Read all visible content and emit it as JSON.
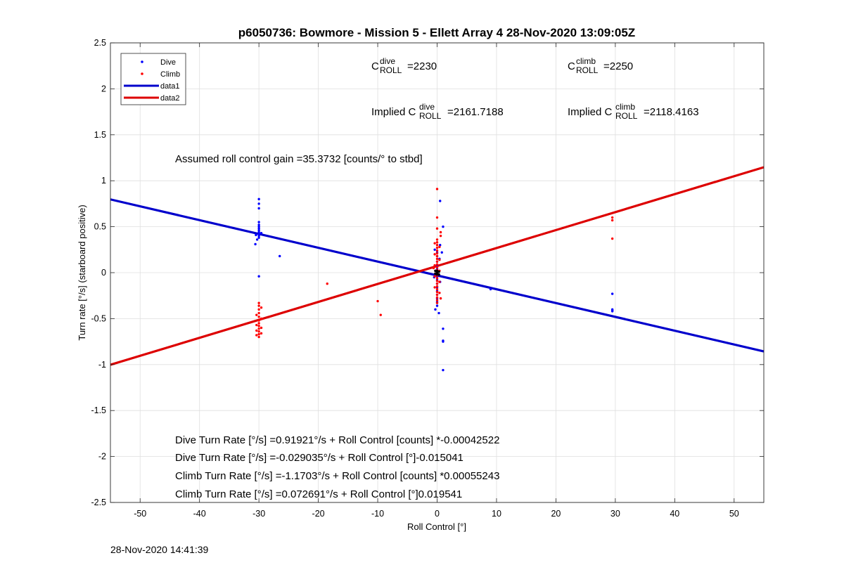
{
  "chart_data": {
    "type": "scatter",
    "title": "p6050736: Bowmore - Mission 5 - Ellett Array 4 28-Nov-2020 13:09:05Z",
    "xlabel": "Roll Control [°]",
    "ylabel": "Turn rate [°/s] (starboard positive)",
    "xlim": [
      -55,
      55
    ],
    "ylim": [
      -2.5,
      2.5
    ],
    "xticks": [
      -50,
      -40,
      -30,
      -20,
      -10,
      0,
      10,
      20,
      30,
      40,
      50
    ],
    "yticks": [
      -2.5,
      -2,
      -1.5,
      -1,
      -0.5,
      0,
      0.5,
      1,
      1.5,
      2,
      2.5
    ],
    "grid": true,
    "legend_location": "top-left",
    "series": [
      {
        "name": "Dive",
        "kind": "points",
        "color": "#0000ff",
        "points": [
          [
            -30,
            0.8
          ],
          [
            -30,
            0.75
          ],
          [
            -30,
            0.7
          ],
          [
            -30,
            0.55
          ],
          [
            -30,
            0.52
          ],
          [
            -30,
            0.5
          ],
          [
            -30,
            0.48
          ],
          [
            -30,
            0.46
          ],
          [
            -30,
            0.44
          ],
          [
            -30,
            0.42
          ],
          [
            -30,
            0.4
          ],
          [
            -30,
            0.38
          ],
          [
            -30.5,
            0.41
          ],
          [
            -29.6,
            0.43
          ],
          [
            -30.3,
            0.36
          ],
          [
            -30.6,
            0.31
          ],
          [
            -30,
            -0.04
          ],
          [
            -26.5,
            0.18
          ],
          [
            0,
            0.22
          ],
          [
            0,
            0.18
          ],
          [
            0,
            0.12
          ],
          [
            0,
            0.08
          ],
          [
            0,
            0.04
          ],
          [
            0,
            0.0
          ],
          [
            0,
            -0.04
          ],
          [
            0,
            -0.08
          ],
          [
            0,
            -0.12
          ],
          [
            0,
            -0.16
          ],
          [
            0,
            -0.2
          ],
          [
            0,
            -0.24
          ],
          [
            0,
            -0.28
          ],
          [
            0,
            -0.32
          ],
          [
            0,
            -0.36
          ],
          [
            -0.3,
            -0.4
          ],
          [
            0.3,
            -0.44
          ],
          [
            -0.4,
            0.25
          ],
          [
            0.4,
            0.15
          ],
          [
            0.5,
            -0.1
          ],
          [
            -0.5,
            -0.05
          ],
          [
            0.5,
            0.78
          ],
          [
            1.0,
            0.5
          ],
          [
            0.5,
            0.3
          ],
          [
            0.8,
            0.22
          ],
          [
            1.0,
            -0.61
          ],
          [
            1.0,
            -0.74
          ],
          [
            1.0,
            -0.75
          ],
          [
            1.0,
            -1.06
          ],
          [
            9,
            -0.18
          ],
          [
            29.5,
            -0.23
          ],
          [
            29.5,
            -0.4
          ],
          [
            29.5,
            -0.41
          ],
          [
            29.5,
            -0.42
          ]
        ]
      },
      {
        "name": "Climb",
        "kind": "points",
        "color": "#ff0000",
        "points": [
          [
            -30,
            -0.33
          ],
          [
            -30,
            -0.36
          ],
          [
            -30,
            -0.4
          ],
          [
            -30,
            -0.44
          ],
          [
            -30,
            -0.48
          ],
          [
            -30,
            -0.52
          ],
          [
            -30,
            -0.55
          ],
          [
            -30,
            -0.58
          ],
          [
            -30,
            -0.61
          ],
          [
            -30,
            -0.64
          ],
          [
            -30,
            -0.67
          ],
          [
            -30,
            -0.7
          ],
          [
            -29.6,
            -0.38
          ],
          [
            -30.4,
            -0.46
          ],
          [
            -29.6,
            -0.5
          ],
          [
            -30.4,
            -0.57
          ],
          [
            -29.6,
            -0.6
          ],
          [
            -30.4,
            -0.63
          ],
          [
            -29.6,
            -0.66
          ],
          [
            -30.4,
            -0.68
          ],
          [
            -18.5,
            -0.12
          ],
          [
            -10,
            -0.31
          ],
          [
            -9.5,
            -0.46
          ],
          [
            0,
            0.91
          ],
          [
            0,
            0.6
          ],
          [
            0,
            0.48
          ],
          [
            0,
            0.36
          ],
          [
            0,
            0.33
          ],
          [
            0,
            0.3
          ],
          [
            0,
            0.27
          ],
          [
            0,
            0.24
          ],
          [
            0,
            0.21
          ],
          [
            0,
            0.18
          ],
          [
            0,
            0.15
          ],
          [
            0,
            0.12
          ],
          [
            0,
            0.09
          ],
          [
            0,
            0.06
          ],
          [
            0,
            0.03
          ],
          [
            0,
            0.0
          ],
          [
            0,
            -0.03
          ],
          [
            0,
            -0.06
          ],
          [
            0,
            -0.09
          ],
          [
            0,
            -0.12
          ],
          [
            0,
            -0.15
          ],
          [
            0,
            -0.18
          ],
          [
            0,
            -0.21
          ],
          [
            0,
            -0.24
          ],
          [
            0,
            -0.27
          ],
          [
            0,
            -0.3
          ],
          [
            0,
            -0.33
          ],
          [
            -0.4,
            0.32
          ],
          [
            0.4,
            0.28
          ],
          [
            -0.4,
            0.2
          ],
          [
            0.4,
            0.14
          ],
          [
            -0.4,
            0.08
          ],
          [
            0.4,
            0.02
          ],
          [
            -0.4,
            -0.04
          ],
          [
            0.4,
            -0.1
          ],
          [
            -0.4,
            -0.16
          ],
          [
            0.4,
            -0.22
          ],
          [
            0.6,
            0.44
          ],
          [
            0.6,
            0.4
          ],
          [
            -0.6,
            0.05
          ],
          [
            0.6,
            -0.28
          ],
          [
            29.5,
            0.6
          ],
          [
            29.5,
            0.57
          ],
          [
            29.5,
            0.37
          ]
        ]
      },
      {
        "name": "data1",
        "kind": "line",
        "color": "#0000cc",
        "points": [
          [
            -55,
            0.797
          ],
          [
            55,
            -0.857
          ]
        ]
      },
      {
        "name": "data2",
        "kind": "line",
        "color": "#dd0000",
        "points": [
          [
            -55,
            -1.002
          ],
          [
            55,
            1.147
          ]
        ]
      }
    ],
    "black_points": [
      [
        0,
        0.02
      ],
      [
        0,
        0.0
      ],
      [
        0,
        -0.02
      ],
      [
        0.3,
        0.01
      ],
      [
        -0.3,
        -0.01
      ],
      [
        0.3,
        -0.02
      ],
      [
        -0.3,
        0.02
      ]
    ],
    "annotations": {
      "c_dive": {
        "C": "C",
        "sup": "dive",
        "sub": "ROLL",
        "value": "=2230"
      },
      "c_climb": {
        "C": "C",
        "sup": "climb",
        "sub": "ROLL",
        "value": "=2250"
      },
      "implied_dive": {
        "prefix": "Implied C",
        "sup": "dive",
        "sub": "ROLL",
        "value": "=2161.7188"
      },
      "implied_climb": {
        "prefix": "Implied C",
        "sup": "climb",
        "sub": "ROLL",
        "value": "=2118.4163"
      },
      "gain": "Assumed roll control gain =35.3732 [counts/° to stbd]",
      "eq1": "Dive Turn Rate [°/s] =0.91921°/s + Roll Control [counts] *-0.00042522",
      "eq2": "Dive Turn Rate [°/s] =-0.029035°/s + Roll Control [°]-0.015041",
      "eq3": "Climb Turn Rate [°/s] =-1.1703°/s + Roll Control [counts] *0.00055243",
      "eq4": "Climb Turn Rate [°/s] =0.072691°/s + Roll Control [°]0.019541"
    }
  },
  "footer_timestamp": "28-Nov-2020 14:41:39"
}
